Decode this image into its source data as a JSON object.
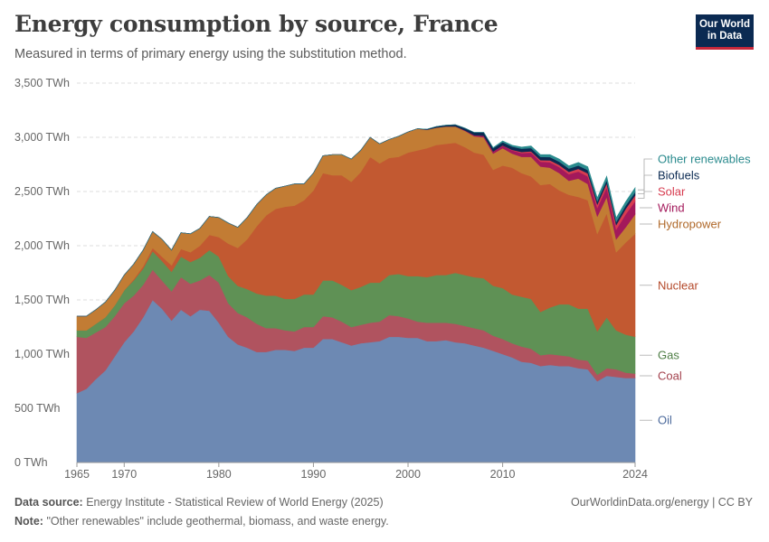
{
  "header": {
    "title": "Energy consumption by source, France",
    "subtitle": "Measured in terms of primary energy using the substitution method.",
    "logo_line1": "Our World",
    "logo_line2": "in Data"
  },
  "footer": {
    "source_label": "Data source:",
    "source_text": "Energy Institute - Statistical Review of World Energy (2025)",
    "note_label": "Note:",
    "note_text": "\"Other renewables\" include geothermal, biomass, and waste energy.",
    "credit": "OurWorldinData.org/energy | CC BY"
  },
  "chart_data": {
    "type": "area",
    "stacked": true,
    "title": "Energy consumption by source, France",
    "xlabel": "",
    "ylabel": "",
    "unit": "TWh",
    "xlim": [
      1965,
      2024
    ],
    "ylim": [
      0,
      3500
    ],
    "grid": true,
    "legend": "right (labels next to areas)",
    "y_ticks": [
      0,
      500,
      1000,
      1500,
      2000,
      2500,
      3000,
      3500
    ],
    "y_tick_labels": [
      "0 TWh",
      "500 TWh",
      "1,000 TWh",
      "1,500 TWh",
      "2,000 TWh",
      "2,500 TWh",
      "3,000 TWh",
      "3,500 TWh"
    ],
    "x_ticks": [
      1965,
      1970,
      1980,
      1990,
      2000,
      2010,
      2024
    ],
    "x": [
      1965,
      1966,
      1967,
      1968,
      1969,
      1970,
      1971,
      1972,
      1973,
      1974,
      1975,
      1976,
      1977,
      1978,
      1979,
      1980,
      1981,
      1982,
      1983,
      1984,
      1985,
      1986,
      1987,
      1988,
      1989,
      1990,
      1991,
      1992,
      1993,
      1994,
      1995,
      1996,
      1997,
      1998,
      1999,
      2000,
      2001,
      2002,
      2003,
      2004,
      2005,
      2006,
      2007,
      2008,
      2009,
      2010,
      2011,
      2012,
      2013,
      2014,
      2015,
      2016,
      2017,
      2018,
      2019,
      2020,
      2021,
      2022,
      2023,
      2024
    ],
    "series": [
      {
        "name": "Oil",
        "color": "#6d89b3",
        "values": [
          640,
          680,
          770,
          850,
          980,
          1110,
          1210,
          1340,
          1500,
          1420,
          1310,
          1410,
          1350,
          1410,
          1400,
          1290,
          1160,
          1090,
          1060,
          1020,
          1020,
          1040,
          1040,
          1030,
          1060,
          1060,
          1140,
          1140,
          1110,
          1080,
          1100,
          1110,
          1120,
          1160,
          1160,
          1150,
          1150,
          1120,
          1120,
          1130,
          1110,
          1100,
          1080,
          1060,
          1030,
          1000,
          970,
          930,
          920,
          890,
          900,
          890,
          890,
          870,
          860,
          750,
          800,
          790,
          780,
          780
        ]
      },
      {
        "name": "Coal",
        "color": "#b0535f",
        "values": [
          520,
          470,
          430,
          400,
          370,
          360,
          330,
          300,
          280,
          260,
          270,
          300,
          300,
          270,
          330,
          370,
          310,
          290,
          280,
          260,
          220,
          200,
          180,
          180,
          190,
          190,
          210,
          200,
          190,
          170,
          170,
          180,
          180,
          200,
          190,
          180,
          150,
          170,
          170,
          160,
          170,
          160,
          160,
          160,
          140,
          140,
          130,
          140,
          130,
          100,
          100,
          100,
          90,
          80,
          80,
          60,
          70,
          70,
          50,
          40
        ]
      },
      {
        "name": "Gas",
        "color": "#5f9155",
        "values": [
          60,
          70,
          80,
          90,
          100,
          120,
          140,
          150,
          170,
          180,
          180,
          190,
          200,
          210,
          230,
          240,
          250,
          250,
          260,
          280,
          300,
          300,
          290,
          300,
          300,
          300,
          330,
          340,
          340,
          340,
          350,
          370,
          360,
          370,
          390,
          390,
          420,
          420,
          440,
          440,
          470,
          470,
          470,
          480,
          460,
          470,
          450,
          460,
          460,
          400,
          430,
          470,
          480,
          470,
          480,
          400,
          470,
          360,
          350,
          340
        ]
      },
      {
        "name": "Nuclear",
        "color": "#c25931",
        "values": [
          0,
          0,
          0,
          0,
          0,
          0,
          10,
          20,
          30,
          40,
          60,
          70,
          90,
          110,
          140,
          180,
          300,
          350,
          460,
          620,
          740,
          800,
          850,
          860,
          870,
          960,
          990,
          970,
          1010,
          1000,
          1060,
          1160,
          1100,
          1080,
          1080,
          1140,
          1160,
          1190,
          1200,
          1210,
          1200,
          1180,
          1150,
          1140,
          1070,
          1130,
          1170,
          1140,
          1130,
          1170,
          1140,
          1050,
          1010,
          1030,
          1000,
          900,
          960,
          720,
          850,
          950
        ]
      },
      {
        "name": "Hydropower",
        "color": "#c27c34",
        "values": [
          130,
          130,
          130,
          140,
          140,
          140,
          140,
          150,
          150,
          160,
          140,
          150,
          170,
          160,
          170,
          180,
          190,
          190,
          200,
          200,
          190,
          190,
          190,
          200,
          150,
          160,
          160,
          190,
          190,
          210,
          200,
          180,
          180,
          170,
          190,
          190,
          200,
          170,
          160,
          160,
          150,
          150,
          150,
          160,
          150,
          160,
          130,
          150,
          180,
          170,
          150,
          160,
          130,
          170,
          150,
          160,
          150,
          120,
          140,
          180
        ]
      },
      {
        "name": "Wind",
        "color": "#a3195b",
        "values": [
          0,
          0,
          0,
          0,
          0,
          0,
          0,
          0,
          0,
          0,
          0,
          0,
          0,
          0,
          0,
          0,
          0,
          0,
          0,
          0,
          0,
          0,
          0,
          0,
          0,
          0,
          0,
          0,
          0,
          0,
          0,
          0,
          0,
          0,
          0,
          0,
          0,
          0,
          0,
          0,
          2,
          5,
          10,
          15,
          20,
          25,
          30,
          35,
          40,
          45,
          50,
          55,
          60,
          65,
          70,
          80,
          90,
          90,
          120,
          120
        ]
      },
      {
        "name": "Solar",
        "color": "#d73c50",
        "values": [
          0,
          0,
          0,
          0,
          0,
          0,
          0,
          0,
          0,
          0,
          0,
          0,
          0,
          0,
          0,
          0,
          0,
          0,
          0,
          0,
          0,
          0,
          0,
          0,
          0,
          0,
          0,
          0,
          0,
          0,
          0,
          0,
          0,
          0,
          0,
          0,
          0,
          0,
          0,
          0,
          0,
          0,
          0,
          0,
          0,
          2,
          5,
          10,
          12,
          15,
          18,
          20,
          22,
          25,
          28,
          32,
          36,
          42,
          50,
          55
        ]
      },
      {
        "name": "Biofuels",
        "color": "#0b2a52",
        "values": [
          0,
          0,
          0,
          0,
          0,
          0,
          0,
          0,
          0,
          0,
          0,
          0,
          0,
          0,
          0,
          0,
          0,
          0,
          0,
          0,
          0,
          0,
          0,
          0,
          0,
          0,
          0,
          0,
          0,
          0,
          0,
          0,
          0,
          0,
          0,
          0,
          0,
          5,
          10,
          12,
          15,
          20,
          25,
          30,
          30,
          30,
          30,
          30,
          30,
          30,
          30,
          30,
          30,
          30,
          30,
          30,
          30,
          30,
          30,
          30
        ]
      },
      {
        "name": "Other renewables",
        "color": "#2b8b8e",
        "values": [
          0,
          0,
          0,
          0,
          0,
          0,
          0,
          0,
          0,
          0,
          0,
          0,
          0,
          0,
          0,
          0,
          0,
          0,
          0,
          0,
          0,
          0,
          0,
          0,
          0,
          0,
          0,
          0,
          0,
          0,
          0,
          0,
          0,
          0,
          0,
          0,
          0,
          0,
          0,
          0,
          0,
          0,
          0,
          0,
          5,
          10,
          12,
          15,
          18,
          20,
          22,
          24,
          25,
          28,
          30,
          30,
          35,
          35,
          35,
          40
        ]
      }
    ]
  }
}
